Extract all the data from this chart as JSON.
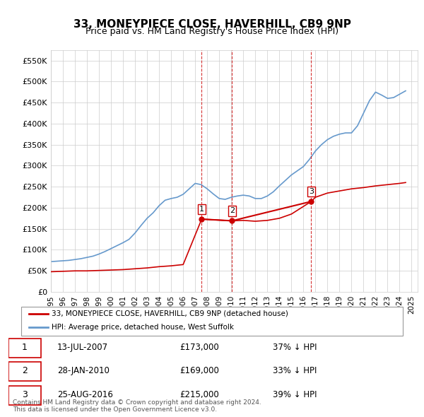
{
  "title": "33, MONEYPIECE CLOSE, HAVERHILL, CB9 9NP",
  "subtitle": "Price paid vs. HM Land Registry's House Price Index (HPI)",
  "ylabel": "",
  "ylim": [
    0,
    575000
  ],
  "yticks": [
    0,
    50000,
    100000,
    150000,
    200000,
    250000,
    300000,
    350000,
    400000,
    450000,
    500000,
    550000
  ],
  "ytick_labels": [
    "£0",
    "£50K",
    "£100K",
    "£150K",
    "£200K",
    "£250K",
    "£300K",
    "£350K",
    "£400K",
    "£450K",
    "£500K",
    "£550K"
  ],
  "hpi_years": [
    1995,
    1995.5,
    1996,
    1996.5,
    1997,
    1997.5,
    1998,
    1998.5,
    1999,
    1999.5,
    2000,
    2000.5,
    2001,
    2001.5,
    2002,
    2002.5,
    2003,
    2003.5,
    2004,
    2004.5,
    2005,
    2005.5,
    2006,
    2006.5,
    2007,
    2007.5,
    2008,
    2008.5,
    2009,
    2009.5,
    2010,
    2010.5,
    2011,
    2011.5,
    2012,
    2012.5,
    2013,
    2013.5,
    2014,
    2014.5,
    2015,
    2015.5,
    2016,
    2016.5,
    2017,
    2017.5,
    2018,
    2018.5,
    2019,
    2019.5,
    2020,
    2020.5,
    2021,
    2021.5,
    2022,
    2022.5,
    2023,
    2023.5,
    2024,
    2024.5
  ],
  "hpi_values": [
    72000,
    73000,
    74000,
    75000,
    77000,
    79000,
    82000,
    85000,
    90000,
    96000,
    103000,
    110000,
    117000,
    125000,
    140000,
    158000,
    175000,
    188000,
    205000,
    218000,
    222000,
    225000,
    232000,
    245000,
    258000,
    255000,
    245000,
    233000,
    222000,
    220000,
    225000,
    228000,
    230000,
    228000,
    222000,
    222000,
    228000,
    238000,
    252000,
    265000,
    278000,
    288000,
    298000,
    315000,
    335000,
    350000,
    362000,
    370000,
    375000,
    378000,
    378000,
    395000,
    425000,
    455000,
    475000,
    468000,
    460000,
    462000,
    470000,
    478000
  ],
  "sale_years": [
    2007.54,
    2010.07,
    2016.65
  ],
  "sale_values": [
    173000,
    169000,
    215000
  ],
  "sale_labels": [
    "1",
    "2",
    "3"
  ],
  "sale_dates": [
    "13-JUL-2007",
    "28-JAN-2010",
    "25-AUG-2016"
  ],
  "sale_prices": [
    "£173,000",
    "£169,000",
    "£215,000"
  ],
  "sale_hpi_pct": [
    "37% ↓ HPI",
    "33% ↓ HPI",
    "39% ↓ HPI"
  ],
  "red_color": "#cc0000",
  "blue_color": "#6699cc",
  "bg_color": "#ffffff",
  "grid_color": "#cccccc",
  "legend_label_red": "33, MONEYPIECE CLOSE, HAVERHILL, CB9 9NP (detached house)",
  "legend_label_blue": "HPI: Average price, detached house, West Suffolk",
  "footer": "Contains HM Land Registry data © Crown copyright and database right 2024.\nThis data is licensed under the Open Government Licence v3.0.",
  "xlabel_years": [
    1995,
    1996,
    1997,
    1998,
    1999,
    2000,
    2001,
    2002,
    2003,
    2004,
    2005,
    2006,
    2007,
    2008,
    2009,
    2010,
    2011,
    2012,
    2013,
    2014,
    2015,
    2016,
    2017,
    2018,
    2019,
    2020,
    2021,
    2022,
    2023,
    2024,
    2025
  ]
}
